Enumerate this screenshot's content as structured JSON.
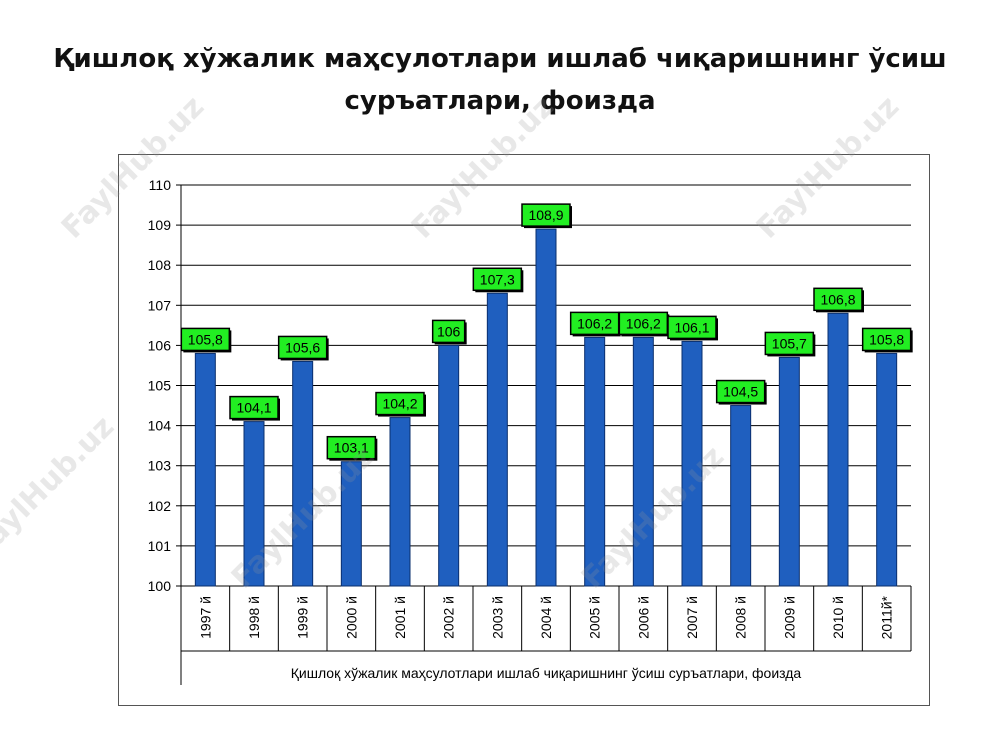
{
  "slide": {
    "title": "Қишлоқ хўжалик маҳсулотлари ишлаб чиқаришнинг ўсиш суръатлари, фоизда"
  },
  "watermark_text": "FaylHub.uz",
  "colors": {
    "bar": "#1f5fbf",
    "bar_edge": "#0a2f6e",
    "label_fill": "#22ee22",
    "grid": "#000000"
  },
  "chart_data": {
    "type": "bar",
    "title": "",
    "xlabel": "Қишлоқ хўжалик маҳсулотлари  ишлаб чиқаришнинг ўсиш суръатлари, фоизда",
    "ylabel": "",
    "ylim": [
      100,
      110
    ],
    "yticks": [
      "100",
      "101",
      "102",
      "103",
      "104",
      "105",
      "106",
      "107",
      "108",
      "109",
      "110"
    ],
    "grid": true,
    "categories": [
      "1997 й",
      "1998 й",
      "1999 й",
      "2000 й",
      "2001 й",
      "2002 й",
      "2003 й",
      "2004 й",
      "2005 й",
      "2006 й",
      "2007 й",
      "2008 й",
      "2009 й",
      "2010 й",
      "2011й*"
    ],
    "values": [
      105.8,
      104.1,
      105.6,
      103.1,
      104.2,
      106,
      107.3,
      108.9,
      106.2,
      106.2,
      106.1,
      104.5,
      105.7,
      106.8,
      105.8
    ],
    "data_labels": [
      "105,8",
      "104,1",
      "105,6",
      "103,1",
      "104,2",
      "106",
      "107,3",
      "108,9",
      "106,2",
      "106,2",
      "106,1",
      "104,5",
      "105,7",
      "106,8",
      "105,8"
    ]
  }
}
